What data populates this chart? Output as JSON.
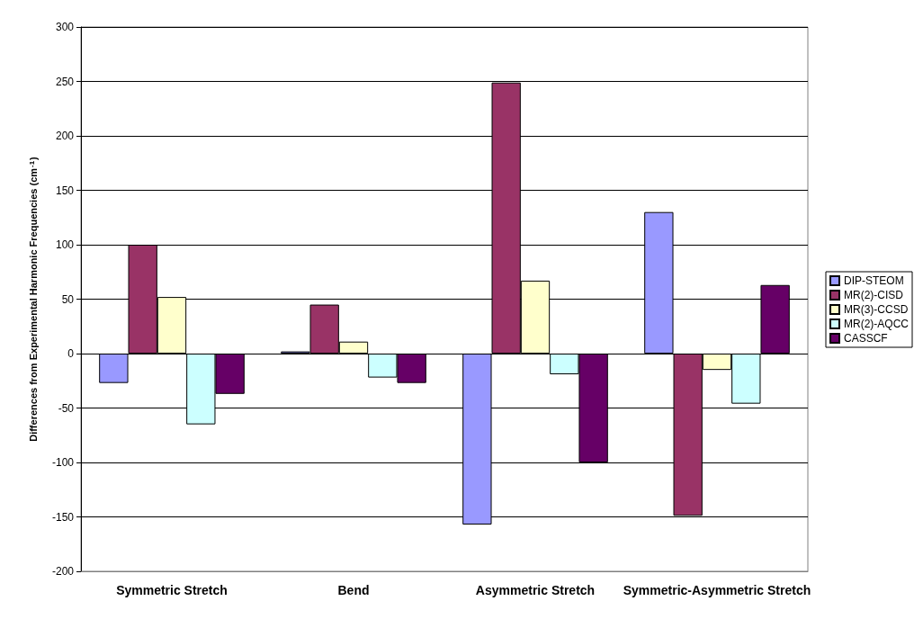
{
  "chart_data": {
    "type": "bar",
    "ylabel": "Differences from Experimental Harmonic Frequencies (cm$^{-1}$)",
    "categories": [
      "Symmetric Stretch",
      "Bend",
      "Asymmetric Stretch",
      "Symmetric-Asymmetric Stretch"
    ],
    "series": [
      {
        "name": "DIP-STEOM",
        "color": "#9999ff",
        "values": [
          -27,
          2,
          -157,
          130
        ]
      },
      {
        "name": "MR(2)-CISD",
        "color": "#993366",
        "values": [
          100,
          45,
          249,
          -149
        ]
      },
      {
        "name": "MR(3)-CCSD",
        "color": "#ffffcc",
        "values": [
          52,
          11,
          67,
          -15
        ]
      },
      {
        "name": "MR(2)-AQCC",
        "color": "#ccffff",
        "values": [
          -65,
          -22,
          -19,
          -46
        ]
      },
      {
        "name": "CASSCF",
        "color": "#660066",
        "values": [
          -37,
          -27,
          -100,
          63
        ]
      }
    ],
    "ylim": [
      -200,
      300
    ],
    "yticks": [
      -200,
      -150,
      -100,
      -50,
      0,
      50,
      100,
      150,
      200,
      250,
      300
    ],
    "grid": "y",
    "legend": "right"
  }
}
